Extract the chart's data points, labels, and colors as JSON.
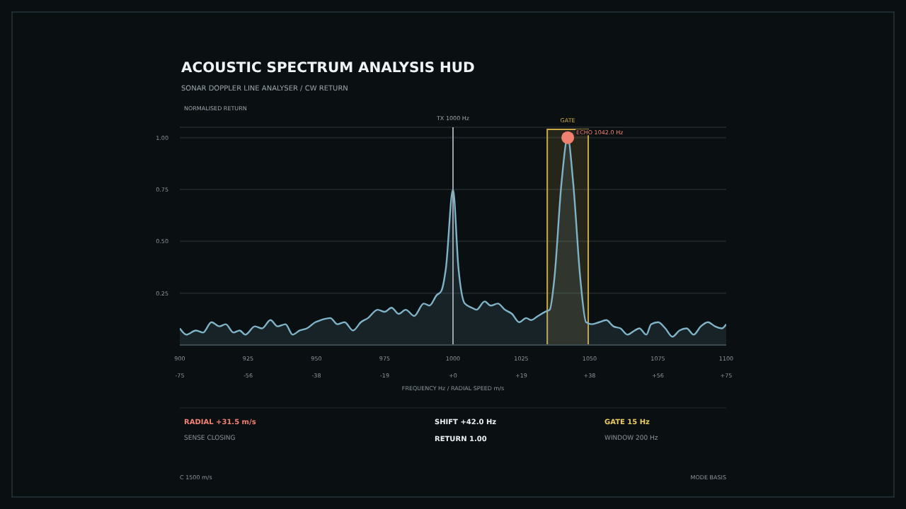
{
  "chart_data": {
    "type": "area",
    "title": "ACOUSTIC SPECTRUM ANALYSIS HUD",
    "subtitle": "SONAR DOPPLER LINE ANALYSER / CW RETURN",
    "ylabel": "NORMALISED RETURN",
    "xlabel": "FREQUENCY Hz / RADIAL SPEED m/s",
    "series": [
      {
        "type": "area",
        "color": "#7fb3c8",
        "x": [
          900,
          902.4,
          905.9,
          908.5,
          911.6,
          914.5,
          916.8,
          919.7,
          921.9,
          924,
          927.5,
          930.1,
          933.2,
          935.8,
          938.7,
          941.3,
          943.9,
          946.5,
          949.6,
          951.6,
          955.1,
          957.7,
          960.3,
          963.4,
          966.3,
          968.9,
          972.4,
          975,
          977.5,
          980.1,
          982.7,
          985.8,
          989.3,
          991.4,
          994,
          995.7,
          997.4,
          1000,
          1002,
          1004.3,
          1006.9,
          1008.6,
          1011.6,
          1013.8,
          1016.4,
          1019,
          1021.6,
          1024.2,
          1026.8,
          1028.5,
          1031.1,
          1033.7,
          1035.4,
          1037.1,
          1039.7,
          1042,
          1044,
          1046.6,
          1048.7,
          1050.9,
          1053.5,
          1056.1,
          1058.7,
          1061.3,
          1063.9,
          1066.5,
          1068.2,
          1070.8,
          1072.5,
          1075.1,
          1077.7,
          1080.3,
          1082.9,
          1085.5,
          1088.1,
          1090.7,
          1093.3,
          1095.9,
          1098.4,
          1100
        ],
        "values": [
          0.08,
          0.05,
          0.07,
          0.06,
          0.11,
          0.09,
          0.1,
          0.06,
          0.07,
          0.05,
          0.09,
          0.08,
          0.12,
          0.09,
          0.1,
          0.05,
          0.07,
          0.08,
          0.11,
          0.12,
          0.13,
          0.1,
          0.11,
          0.07,
          0.11,
          0.13,
          0.17,
          0.16,
          0.18,
          0.15,
          0.17,
          0.14,
          0.2,
          0.19,
          0.24,
          0.26,
          0.37,
          0.75,
          0.37,
          0.2,
          0.18,
          0.17,
          0.21,
          0.19,
          0.2,
          0.17,
          0.15,
          0.11,
          0.13,
          0.12,
          0.14,
          0.16,
          0.17,
          0.32,
          0.78,
          1.0,
          0.78,
          0.32,
          0.11,
          0.1,
          0.11,
          0.12,
          0.09,
          0.08,
          0.05,
          0.07,
          0.08,
          0.05,
          0.1,
          0.11,
          0.08,
          0.04,
          0.07,
          0.08,
          0.05,
          0.09,
          0.11,
          0.09,
          0.08,
          0.1
        ]
      },
      {
        "type": "scatter",
        "color": "#f08070",
        "x": [
          1042
        ],
        "values": [
          1.0
        ]
      }
    ],
    "xlim": [
      900,
      1100
    ],
    "xticks": [
      900,
      925,
      950,
      975,
      1000,
      1025,
      1050,
      1075,
      1100
    ],
    "x2lim": [
      -75,
      75
    ],
    "x2ticks": [
      {
        "value": -75,
        "label": "-75"
      },
      {
        "value": -56.25,
        "label": "-56"
      },
      {
        "value": -37.5,
        "label": "-38"
      },
      {
        "value": -18.75,
        "label": "-19"
      },
      {
        "value": 0,
        "label": "+0"
      },
      {
        "value": 18.75,
        "label": "+19"
      },
      {
        "value": 37.5,
        "label": "+38"
      },
      {
        "value": 56.25,
        "label": "+56"
      },
      {
        "value": 75,
        "label": "+75"
      }
    ],
    "ylim": [
      0,
      1.05
    ],
    "yticks": [
      {
        "value": 0.25,
        "label": "0.25"
      },
      {
        "value": 0.5,
        "label": "0.50"
      },
      {
        "value": 0.75,
        "label": "0.75"
      },
      {
        "value": 1,
        "label": "1.00"
      }
    ],
    "grid": "y",
    "legend": false,
    "ref_lines": [
      {
        "axis": "x",
        "value": 1000,
        "label": "TX 1000 Hz",
        "color": "#9aa4aa"
      }
    ],
    "bands": [
      {
        "axis": "x",
        "from": 1034.5,
        "to": 1049.5,
        "label": "GATE",
        "color": "#c9a94a"
      }
    ],
    "annotations": [
      {
        "text": "ECHO 1042.0 Hz",
        "x": 1042,
        "y": 1.0
      },
      "RADIAL +31.5 m/s",
      "SHIFT +42.0 Hz",
      "GATE 15 Hz",
      "SENSE CLOSING",
      "RETURN 1.00",
      "WINDOW 200 Hz",
      "C 1500 m/s",
      "MODE BASIS"
    ]
  }
}
